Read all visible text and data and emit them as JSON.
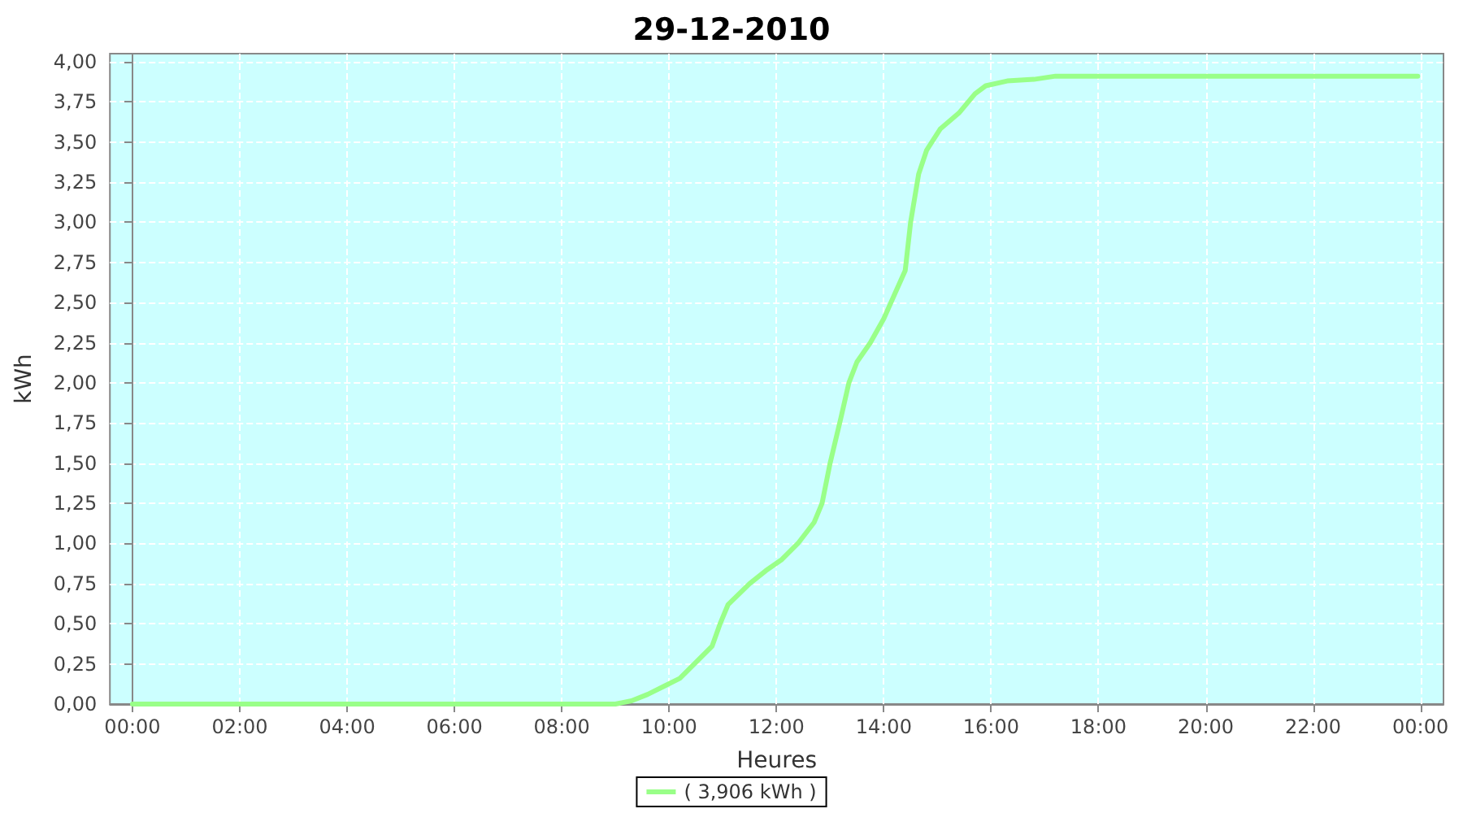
{
  "chart_data": {
    "type": "line",
    "title": "29-12-2010",
    "xlabel": "Heures",
    "ylabel": "kWh",
    "xlim": [
      -0.42,
      24.43
    ],
    "ylim": [
      0,
      4.05
    ],
    "xticks": [
      {
        "value": 0,
        "label": "00:00"
      },
      {
        "value": 2,
        "label": "02:00"
      },
      {
        "value": 4,
        "label": "04:00"
      },
      {
        "value": 6,
        "label": "06:00"
      },
      {
        "value": 8,
        "label": "08:00"
      },
      {
        "value": 10,
        "label": "10:00"
      },
      {
        "value": 12,
        "label": "12:00"
      },
      {
        "value": 14,
        "label": "14:00"
      },
      {
        "value": 16,
        "label": "16:00"
      },
      {
        "value": 18,
        "label": "18:00"
      },
      {
        "value": 20,
        "label": "20:00"
      },
      {
        "value": 22,
        "label": "22:00"
      },
      {
        "value": 24,
        "label": "00:00"
      }
    ],
    "yticks": [
      {
        "value": 0,
        "label": "0,00"
      },
      {
        "value": 0.25,
        "label": "0,25"
      },
      {
        "value": 0.5,
        "label": "0,50"
      },
      {
        "value": 0.75,
        "label": "0,75"
      },
      {
        "value": 1,
        "label": "1,00"
      },
      {
        "value": 1.25,
        "label": "1,25"
      },
      {
        "value": 1.5,
        "label": "1,50"
      },
      {
        "value": 1.75,
        "label": "1,75"
      },
      {
        "value": 2,
        "label": "2,00"
      },
      {
        "value": 2.25,
        "label": "2,25"
      },
      {
        "value": 2.5,
        "label": "2,50"
      },
      {
        "value": 2.75,
        "label": "2,75"
      },
      {
        "value": 3,
        "label": "3,00"
      },
      {
        "value": 3.25,
        "label": "3,25"
      },
      {
        "value": 3.5,
        "label": "3,50"
      },
      {
        "value": 3.75,
        "label": "3,75"
      },
      {
        "value": 4,
        "label": "4,00"
      }
    ],
    "grid": true,
    "legend": "bottom",
    "marker": "none",
    "line_style": "solid",
    "series": [
      {
        "name": "( 3,906 kWh )",
        "color": "#99ff88",
        "x": [
          0,
          9.0,
          9.3,
          9.6,
          9.9,
          10.2,
          10.5,
          10.8,
          10.95,
          11.1,
          11.5,
          11.8,
          12.1,
          12.4,
          12.7,
          12.85,
          13.0,
          13.2,
          13.35,
          13.5,
          13.75,
          14.0,
          14.2,
          14.4,
          14.5,
          14.65,
          14.8,
          15.05,
          15.4,
          15.7,
          15.9,
          16.3,
          16.8,
          17.2,
          23.95
        ],
        "values": [
          0,
          0,
          0.02,
          0.06,
          0.11,
          0.16,
          0.26,
          0.36,
          0.5,
          0.62,
          0.75,
          0.83,
          0.9,
          1.0,
          1.13,
          1.25,
          1.5,
          1.78,
          2.0,
          2.13,
          2.25,
          2.4,
          2.55,
          2.7,
          3.0,
          3.3,
          3.45,
          3.58,
          3.68,
          3.8,
          3.85,
          3.88,
          3.89,
          3.91,
          3.91
        ]
      }
    ]
  }
}
